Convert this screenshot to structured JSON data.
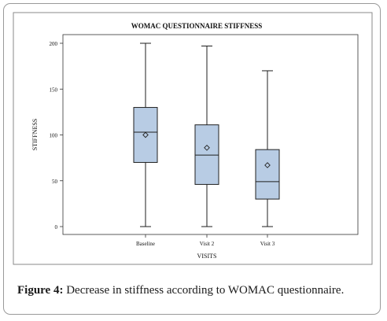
{
  "caption": {
    "label": "Figure 4",
    "text": " Decrease in stiffness according to WOMAC questionnaire."
  },
  "chart_data": {
    "type": "box",
    "title": "WOMAC QUESTIONNAIRE STIFFNESS",
    "xlabel": "VISITS",
    "ylabel": "STIFFNESS",
    "ylim": [
      0,
      200
    ],
    "yticks": [
      0,
      50,
      100,
      150,
      200
    ],
    "grid": false,
    "categories": [
      "Baseline",
      "Visit 2",
      "Visit 3"
    ],
    "boxes": [
      {
        "category": "Baseline",
        "min": 0,
        "q1": 70,
        "median": 103,
        "q3": 130,
        "max": 200,
        "mean": 100
      },
      {
        "category": "Visit 2",
        "min": 0,
        "q1": 46,
        "median": 78,
        "q3": 111,
        "max": 197,
        "mean": 86
      },
      {
        "category": "Visit 3",
        "min": 0,
        "q1": 30,
        "median": 49,
        "q3": 84,
        "max": 170,
        "mean": 67
      }
    ],
    "colors": {
      "box_fill": "#b8cce4",
      "box_stroke": "#1f1f1f",
      "plot_bg": "#ffffff"
    }
  }
}
